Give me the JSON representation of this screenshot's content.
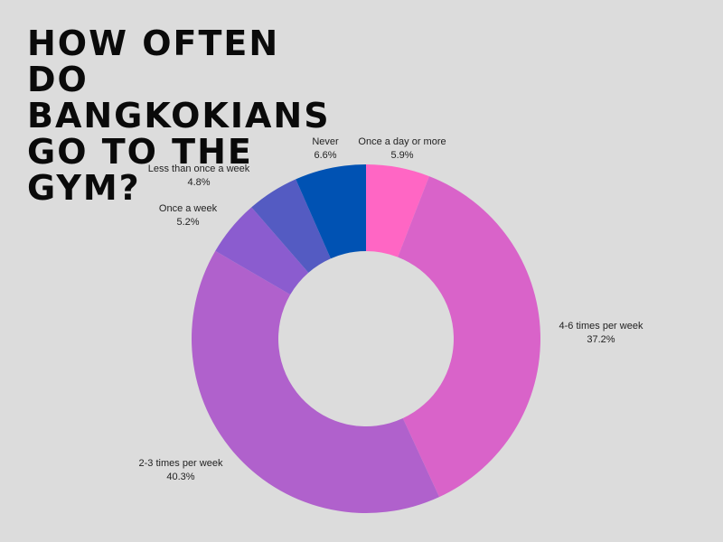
{
  "chart_data": {
    "type": "pie",
    "title": "HOW OFTEN DO BANGKOKIANS GO TO THE GYM?",
    "donut": true,
    "slices": [
      {
        "label": "Once a day or more",
        "value": 5.9,
        "value_label": "5.9%",
        "color": "#ff66c4"
      },
      {
        "label": "4-6 times per week",
        "value": 37.2,
        "value_label": "37.2%",
        "color": "#d963c9"
      },
      {
        "label": "2-3 times per week",
        "value": 40.3,
        "value_label": "40.3%",
        "color": "#b061cc"
      },
      {
        "label": "Once a week",
        "value": 5.2,
        "value_label": "5.2%",
        "color": "#8b5ccf"
      },
      {
        "label": "Less than once a week",
        "value": 4.8,
        "value_label": "4.8%",
        "color": "#545bc2"
      },
      {
        "label": "Never",
        "value": 6.6,
        "value_label": "6.6%",
        "color": "#0052b3"
      }
    ]
  }
}
